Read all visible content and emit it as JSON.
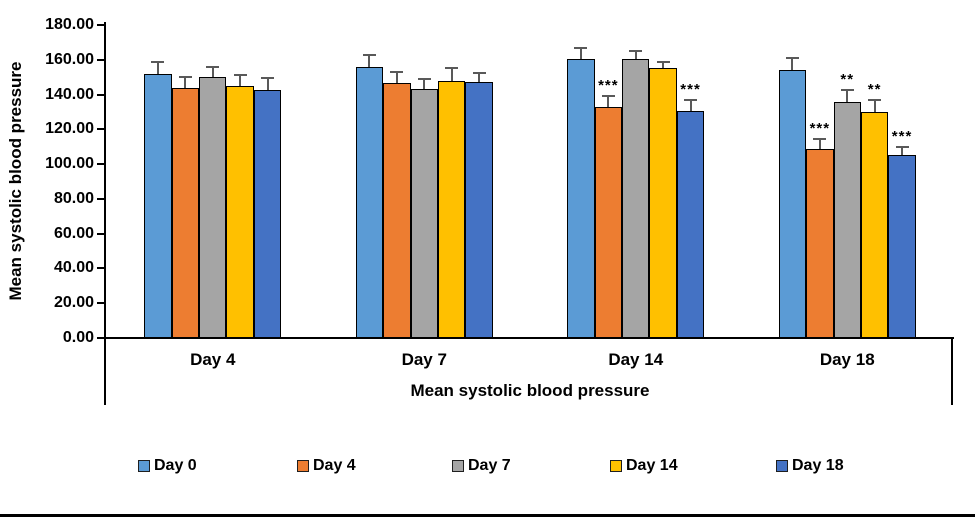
{
  "chart_data": {
    "type": "bar",
    "grid": false,
    "y_axis": {
      "label": "Mean systolic blood pressure",
      "min": 0,
      "max": 180,
      "tick_step": 20,
      "tick_labels": [
        "0.00",
        "20.00",
        "40.00",
        "60.00",
        "80.00",
        "100.00",
        "120.00",
        "140.00",
        "160.00",
        "180.00"
      ]
    },
    "x_axis": {
      "label": "Mean systolic blood pressure",
      "categories": [
        "Day 4",
        "Day 7",
        "Day 14",
        "Day 18"
      ]
    },
    "series": [
      {
        "name": "Day 0",
        "color": "#5B9BD5",
        "values": [
          152,
          156,
          160.5,
          154
        ],
        "errors": [
          6.5,
          6.5,
          6.5,
          7
        ],
        "significance": [
          "",
          "",
          "",
          ""
        ]
      },
      {
        "name": "Day 4",
        "color": "#ED7D31",
        "values": [
          144,
          146.5,
          133,
          108.5
        ],
        "errors": [
          6,
          6.5,
          6,
          6
        ],
        "significance": [
          "",
          "",
          "***",
          "***"
        ]
      },
      {
        "name": "Day 7",
        "color": "#A5A5A5",
        "values": [
          150,
          143,
          160.5,
          135.5
        ],
        "errors": [
          6,
          6,
          4.5,
          7
        ],
        "significance": [
          "",
          "",
          "",
          "**"
        ]
      },
      {
        "name": "Day 14",
        "color": "#FFC000",
        "values": [
          145,
          148,
          155.5,
          130
        ],
        "errors": [
          6.5,
          7.5,
          3.5,
          7
        ],
        "significance": [
          "",
          "",
          "",
          "**"
        ]
      },
      {
        "name": "Day 18",
        "color": "#4472C4",
        "values": [
          142.5,
          147,
          130.5,
          105.5
        ],
        "errors": [
          7,
          5.5,
          6.5,
          4.5
        ],
        "significance": [
          "",
          "",
          "***",
          "***"
        ]
      }
    ],
    "legend": {
      "position": "bottom"
    },
    "styles": {
      "error_bar_color": "#595959",
      "bar_border_color": "#000000",
      "axis_color": "#000000",
      "significance_color": "#000000"
    }
  }
}
